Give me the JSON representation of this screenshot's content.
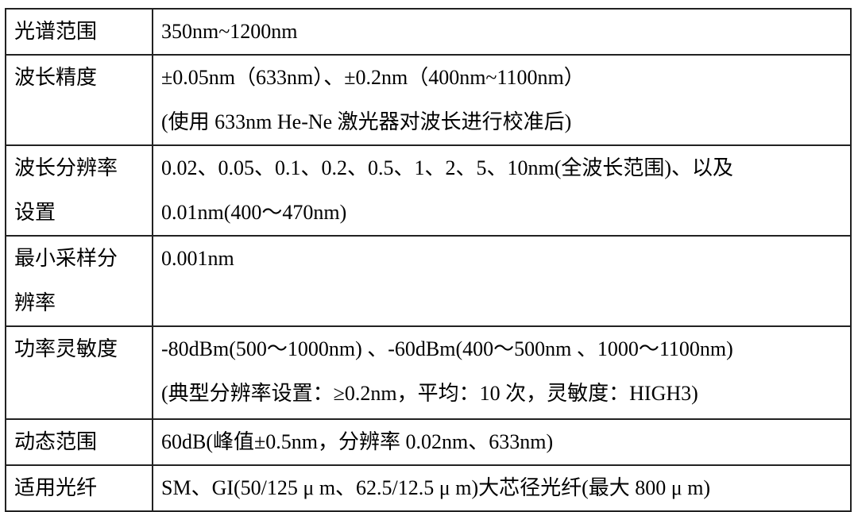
{
  "rows": [
    {
      "label": [
        "光谱范围"
      ],
      "value": [
        "350nm~1200nm"
      ]
    },
    {
      "label": [
        "波长精度"
      ],
      "value": [
        "±0.05nm（633nm）、±0.2nm（400nm~1100nm）",
        "(使用 633nm He-Ne 激光器对波长进行校准后)"
      ]
    },
    {
      "label": [
        "波长分辨率",
        "设置"
      ],
      "value": [
        "0.02、0.05、0.1、0.2、0.5、1、2、5、10nm(全波长范围)、以及",
        "0.01nm(400～470nm)"
      ]
    },
    {
      "label": [
        "最小采样分",
        "辨率"
      ],
      "value": [
        "0.001nm"
      ]
    },
    {
      "label": [
        "功率灵敏度"
      ],
      "value": [
        "-80dBm(500～1000nm) 、-60dBm(400～500nm 、1000～1100nm)",
        "(典型分辨率设置：≥0.2nm，平均：10 次，灵敏度：HIGH3)"
      ]
    },
    {
      "label": [
        "动态范围"
      ],
      "value": [
        "60dB(峰值±0.5nm，分辨率 0.02nm、633nm)"
      ]
    },
    {
      "label": [
        "适用光纤"
      ],
      "value": [
        "SM、GI(50/125 μ m、62.5/12.5 μ m)大芯径光纤(最大 800 μ m)"
      ]
    }
  ]
}
